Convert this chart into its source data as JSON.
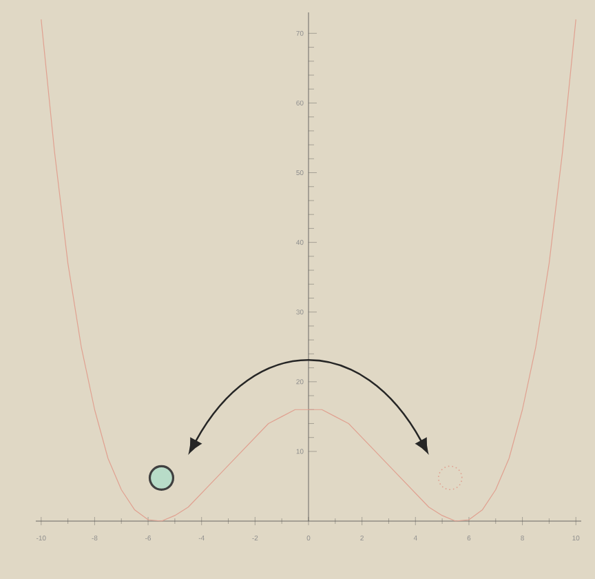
{
  "chart_data": {
    "type": "line",
    "color": "#e0a090",
    "x": [
      -10,
      -9.5,
      -9,
      -8.5,
      -8,
      -7.5,
      -7,
      -6.5,
      -6,
      -5.5,
      -5,
      -4.5,
      -4,
      -3.5,
      -3,
      -2.5,
      -2,
      -1.5,
      -1,
      -0.5,
      0,
      0.5,
      1,
      1.5,
      2,
      2.5,
      3,
      3.5,
      4,
      4.5,
      5,
      5.5,
      6,
      6.5,
      7,
      7.5,
      8,
      8.5,
      9,
      9.5,
      10
    ],
    "values": [
      72,
      53,
      37,
      25,
      16,
      9,
      4.5,
      1.6,
      0.2,
      0,
      0.8,
      2,
      4,
      6,
      8,
      10,
      12,
      14,
      15,
      16,
      16,
      16,
      15,
      14,
      12,
      10,
      8,
      6,
      4,
      2,
      0.8,
      0,
      0.2,
      1.6,
      4.5,
      9,
      16,
      25,
      37,
      53,
      72
    ],
    "xlim": [
      -10.2,
      10.2
    ],
    "ylim": [
      0,
      73
    ],
    "xticks": [
      -10,
      -8,
      -6,
      -4,
      -2,
      0,
      2,
      4,
      6,
      8,
      10
    ],
    "yticks": [
      10,
      20,
      30,
      40,
      50,
      60,
      70
    ]
  }
}
